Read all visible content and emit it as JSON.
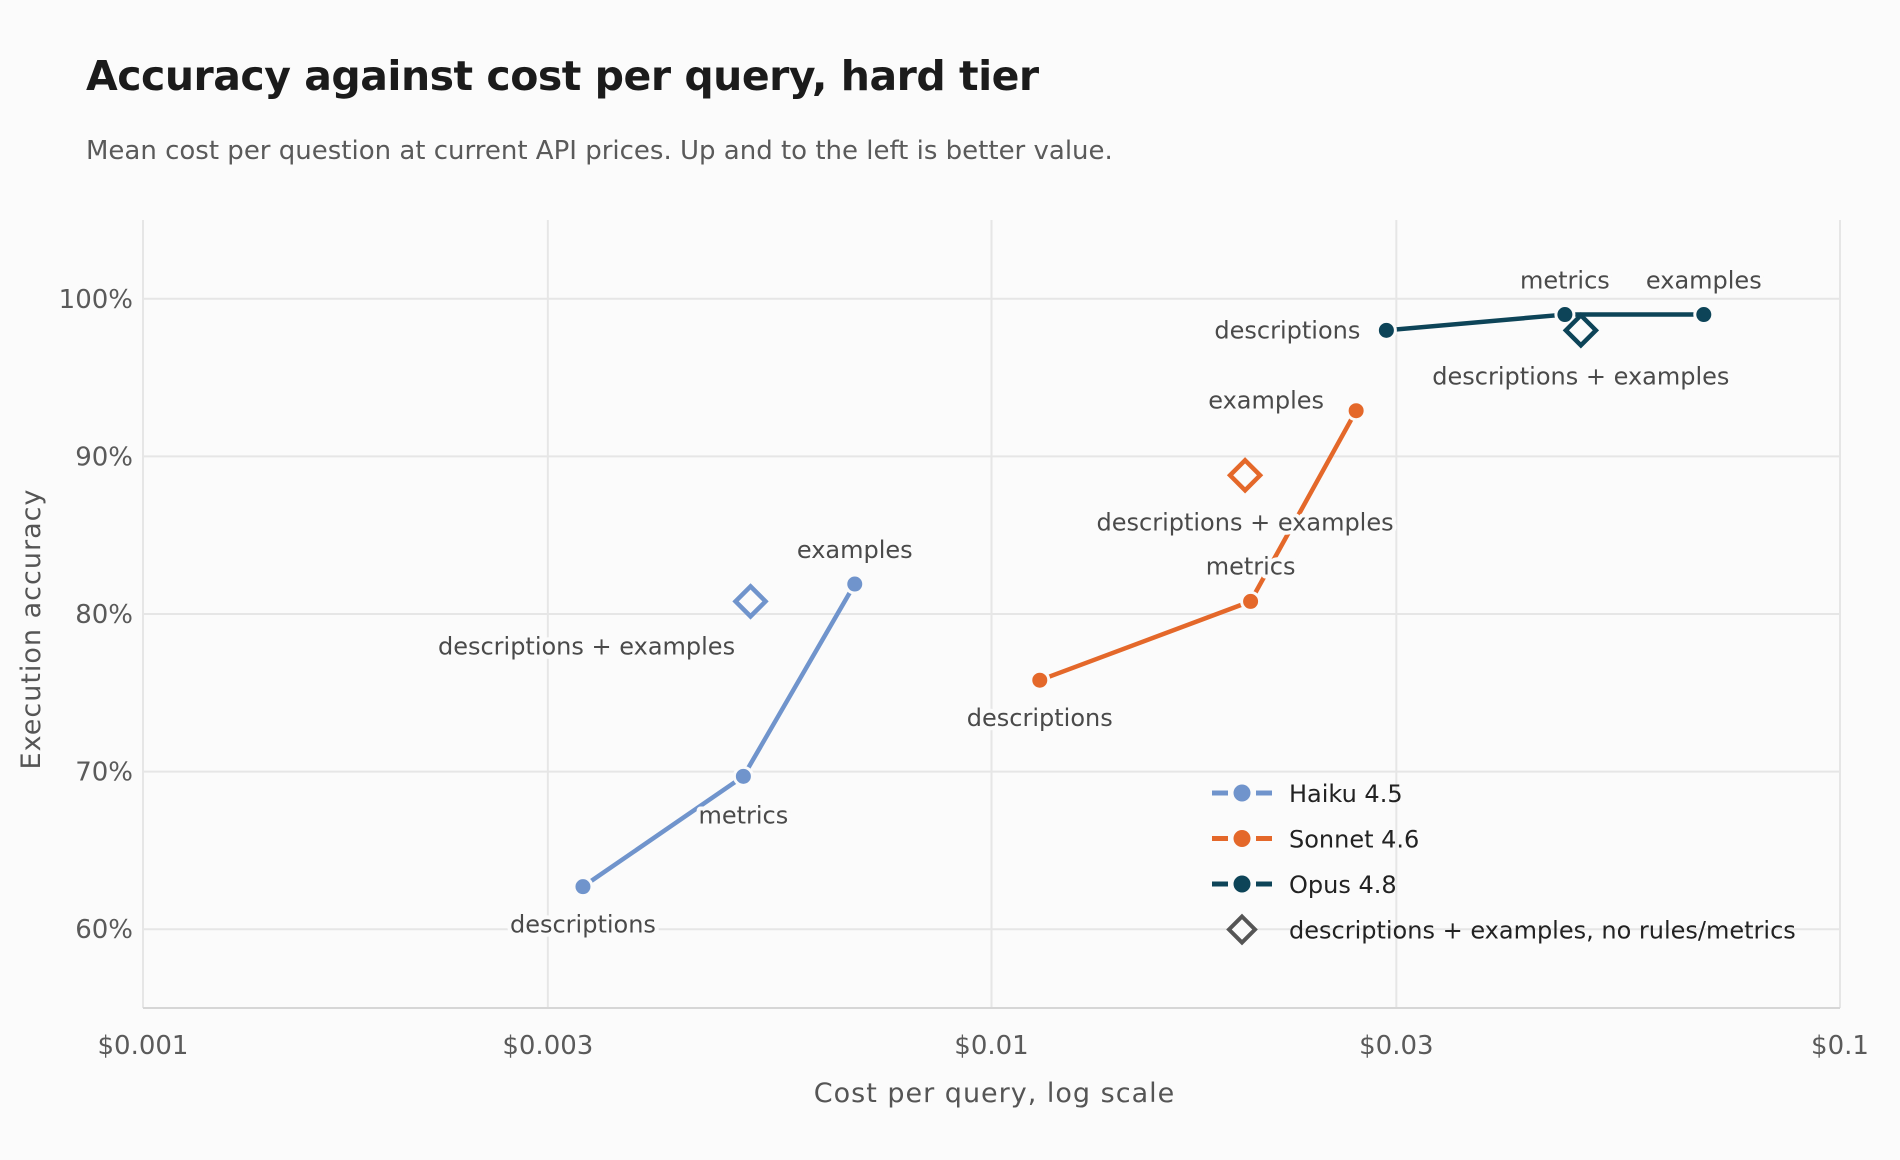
{
  "header": {
    "title": "Accuracy against cost per query, hard tier",
    "subtitle": "Mean cost per question at current API prices. Up and to the left is better value."
  },
  "chart_data": {
    "type": "scatter",
    "title": "Accuracy against cost per query, hard tier",
    "subtitle": "Mean cost per question at current API prices. Up and to the left is better value.",
    "xlabel": "Cost per query, log scale",
    "ylabel": "Execution accuracy",
    "x_scale": "log",
    "xlim": [
      0.001,
      0.1
    ],
    "ylim": [
      55,
      105
    ],
    "x_ticks": [
      0.001,
      0.003,
      0.01,
      0.03,
      0.1
    ],
    "x_tick_labels": [
      "$0.001",
      "$0.003",
      "$0.01",
      "$0.03",
      "$0.1"
    ],
    "y_ticks": [
      60,
      70,
      80,
      90,
      100
    ],
    "y_tick_labels": [
      "60%",
      "70%",
      "80%",
      "90%",
      "100%"
    ],
    "grid": true,
    "legend_position": "bottom-right",
    "series": [
      {
        "name": "Haiku 4.5",
        "color": "#7094cc",
        "points": [
          {
            "label": "descriptions",
            "x": 0.0033,
            "y": 62.7
          },
          {
            "label": "metrics",
            "x": 0.0051,
            "y": 69.7
          },
          {
            "label": "examples",
            "x": 0.0069,
            "y": 81.9
          }
        ],
        "diamond": {
          "label": "descriptions + examples",
          "x": 0.0052,
          "y": 80.8
        }
      },
      {
        "name": "Sonnet 4.6",
        "color": "#e4682a",
        "points": [
          {
            "label": "descriptions",
            "x": 0.0114,
            "y": 75.8
          },
          {
            "label": "metrics",
            "x": 0.0202,
            "y": 80.8
          },
          {
            "label": "examples",
            "x": 0.0269,
            "y": 92.9
          }
        ],
        "diamond": {
          "label": "descriptions + examples",
          "x": 0.0199,
          "y": 88.8
        }
      },
      {
        "name": "Opus 4.8",
        "color": "#0d4458",
        "points": [
          {
            "label": "descriptions",
            "x": 0.0292,
            "y": 98.0
          },
          {
            "label": "metrics",
            "x": 0.0474,
            "y": 99.0
          },
          {
            "label": "examples",
            "x": 0.0691,
            "y": 99.0
          }
        ],
        "diamond": {
          "label": "descriptions + examples",
          "x": 0.0495,
          "y": 98.0
        }
      }
    ],
    "diamond_legend": "descriptions + examples, no rules/metrics"
  }
}
